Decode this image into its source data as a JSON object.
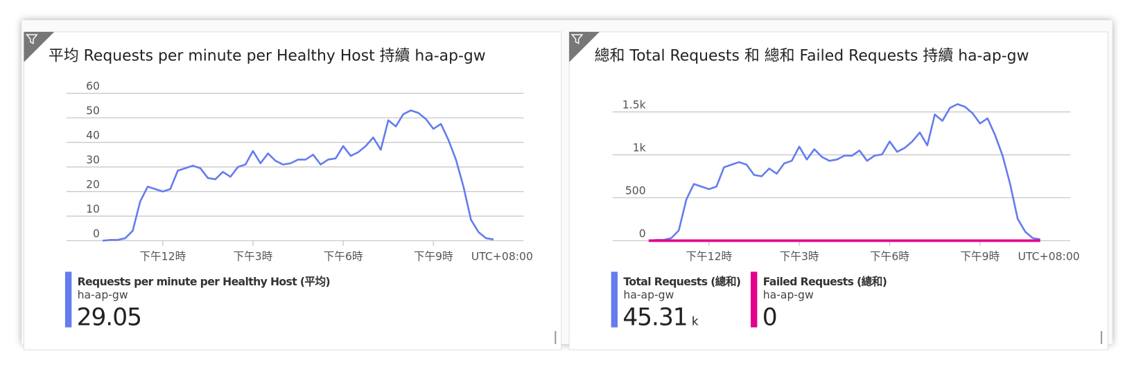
{
  "chart_data": [
    {
      "type": "line",
      "title": "平均 Requests per minute per Healthy Host 持續 ha-ap-gw",
      "x": [
        10,
        10.25,
        10.5,
        10.75,
        11,
        11.25,
        11.5,
        11.75,
        12,
        12.25,
        12.5,
        12.75,
        13,
        13.25,
        13.5,
        13.75,
        14,
        14.25,
        14.5,
        14.75,
        15,
        15.25,
        15.5,
        15.75,
        16,
        16.25,
        16.5,
        16.75,
        17,
        17.25,
        17.5,
        17.75,
        18,
        18.25,
        18.5,
        18.75,
        19,
        19.25,
        19.5,
        19.75,
        20,
        20.25,
        20.5,
        20.75,
        21,
        21.25,
        21.5,
        21.75,
        22,
        22.25,
        22.5,
        22.75,
        23
      ],
      "xlim": [
        8.8,
        24
      ],
      "xticks": [
        {
          "value": 12,
          "label": "下午12時"
        },
        {
          "value": 15,
          "label": "下午3時"
        },
        {
          "value": 18,
          "label": "下午6時"
        },
        {
          "value": 21,
          "label": "下午9時"
        }
      ],
      "timezone": "UTC+08:00",
      "ylim": [
        0,
        60
      ],
      "yticks": [
        0,
        10,
        20,
        30,
        40,
        50,
        60
      ],
      "grid": true,
      "series": [
        {
          "name": "Requests per minute per Healthy Host (平均)",
          "resource": "ha-ap-gw",
          "summary": 29.05,
          "color": "#637cef",
          "values": [
            0,
            0.3,
            0.3,
            1,
            4,
            16,
            22,
            21,
            20,
            21,
            28.5,
            29.5,
            30.5,
            29.5,
            25.5,
            25,
            28,
            26,
            30,
            31,
            36.5,
            31.5,
            35.5,
            32.5,
            31,
            31.5,
            33,
            33,
            35,
            31,
            33,
            33.5,
            38.5,
            34.5,
            36,
            38.5,
            42,
            37,
            49,
            46.5,
            51.5,
            53,
            52,
            49.5,
            45.5,
            47.5,
            41,
            33,
            22,
            8.5,
            3.5,
            1,
            0.5
          ]
        }
      ]
    },
    {
      "type": "line",
      "title": "總和 Total Requests 和 總和 Failed Requests 持續 ha-ap-gw",
      "x": [
        10,
        10.25,
        10.5,
        10.75,
        11,
        11.25,
        11.5,
        11.75,
        12,
        12.25,
        12.5,
        12.75,
        13,
        13.25,
        13.5,
        13.75,
        14,
        14.25,
        14.5,
        14.75,
        15,
        15.25,
        15.5,
        15.75,
        16,
        16.25,
        16.5,
        16.75,
        17,
        17.25,
        17.5,
        17.75,
        18,
        18.25,
        18.5,
        18.75,
        19,
        19.25,
        19.5,
        19.75,
        20,
        20.25,
        20.5,
        20.75,
        21,
        21.25,
        21.5,
        21.75,
        22,
        22.25,
        22.5,
        22.75,
        23
      ],
      "xlim": [
        8.8,
        24
      ],
      "xticks": [
        {
          "value": 12,
          "label": "下午12時"
        },
        {
          "value": 15,
          "label": "下午3時"
        },
        {
          "value": 18,
          "label": "下午6時"
        },
        {
          "value": 21,
          "label": "下午9時"
        }
      ],
      "timezone": "UTC+08:00",
      "ylim": [
        0,
        1700
      ],
      "yticks": [
        0,
        500,
        {
          "value": 1000,
          "label": "1k"
        },
        {
          "value": 1500,
          "label": "1.5k"
        }
      ],
      "grid": true,
      "series": [
        {
          "name": "Total Requests (總和)",
          "resource": "ha-ap-gw",
          "summary": 45.31,
          "summary_unit": "k",
          "color": "#637cef",
          "values": [
            0,
            9,
            9,
            30,
            120,
            480,
            660,
            630,
            600,
            630,
            855,
            885,
            915,
            885,
            765,
            750,
            840,
            780,
            900,
            930,
            1095,
            945,
            1065,
            975,
            930,
            945,
            990,
            990,
            1050,
            930,
            990,
            1005,
            1155,
            1035,
            1080,
            1155,
            1260,
            1110,
            1470,
            1395,
            1545,
            1590,
            1560,
            1485,
            1365,
            1425,
            1230,
            990,
            660,
            255,
            105,
            30,
            15
          ]
        },
        {
          "name": "Failed Requests (總和)",
          "resource": "ha-ap-gw",
          "summary": 0,
          "color": "#e3008c",
          "values": [
            0,
            0,
            0,
            0,
            0,
            0,
            0,
            0,
            0,
            0,
            0,
            0,
            0,
            0,
            0,
            0,
            0,
            0,
            0,
            0,
            0,
            0,
            0,
            0,
            0,
            0,
            0,
            0,
            0,
            0,
            0,
            0,
            0,
            0,
            0,
            0,
            0,
            0,
            0,
            0,
            0,
            0,
            0,
            0,
            0,
            0,
            0,
            0,
            0,
            0,
            0,
            0,
            0
          ]
        }
      ]
    }
  ]
}
